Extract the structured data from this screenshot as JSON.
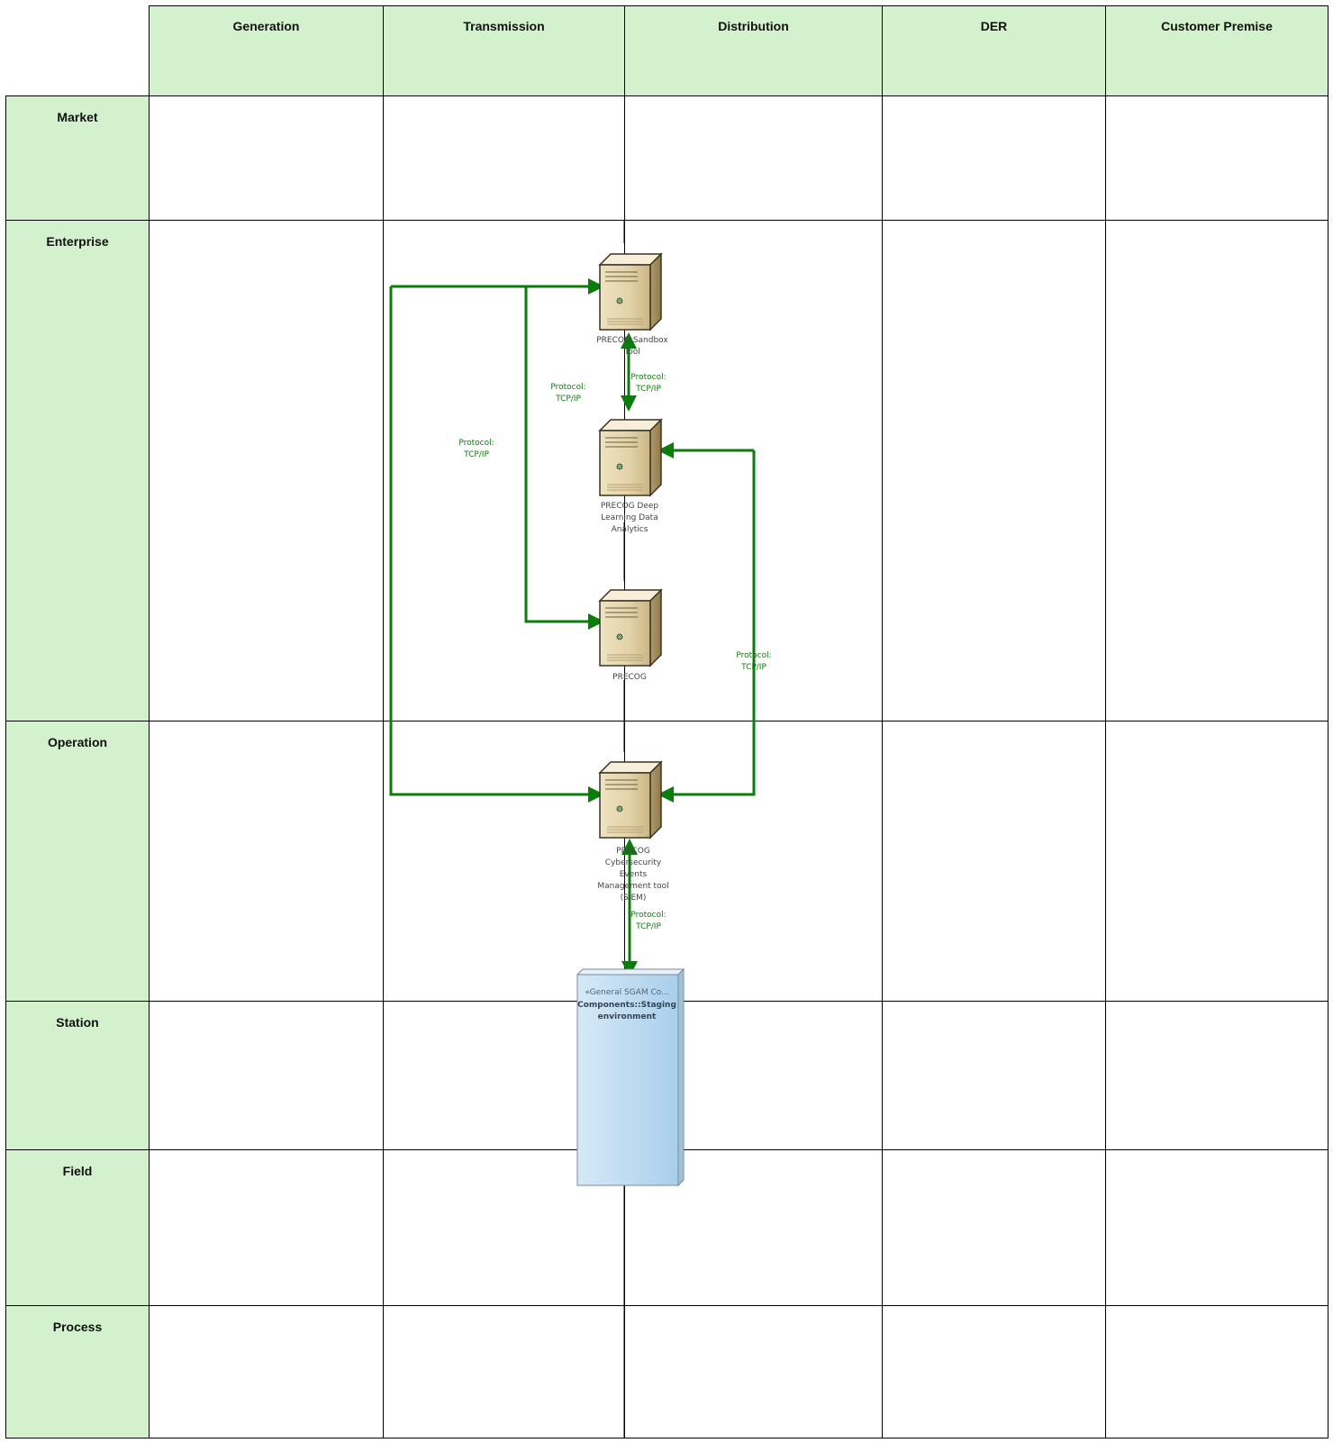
{
  "columns": [
    "Generation",
    "Transmission",
    "Distribution",
    "DER",
    "Customer Premise"
  ],
  "rows": [
    "Market",
    "Enterprise",
    "Operation",
    "Station",
    "Field",
    "Process"
  ],
  "nodes": {
    "sandbox": [
      "PRECOG Sandbox",
      "Tool"
    ],
    "deep_learning": [
      "PRECOG Deep",
      "Learning Data",
      "Analytics"
    ],
    "precog": [
      "PRECOG"
    ],
    "siem": [
      "PRECOG",
      "Cybersecurity",
      "Events",
      "Management tool",
      "(SIEM)"
    ]
  },
  "staging": {
    "stereotype": "«General SGAM Co...",
    "name_lines": [
      "Components::Staging",
      "environment"
    ]
  },
  "connectors": {
    "sandbox_deep": [
      "Protocol:",
      "TCP/IP"
    ],
    "sandbox_precog": [
      "Protocol:",
      "TCP/IP"
    ],
    "sandbox_siem": [
      "Protocol:",
      "TCP/IP"
    ],
    "deep_siem": [
      "Protocol:",
      "TCP/IP"
    ],
    "siem_staging": [
      "Protocol:",
      "TCP/IP"
    ]
  },
  "colors": {
    "header_fill": "#d3f1cc",
    "connector": "#0a7d0a",
    "staging_fill": "#b6d7ef",
    "grid_line": "#000000"
  }
}
